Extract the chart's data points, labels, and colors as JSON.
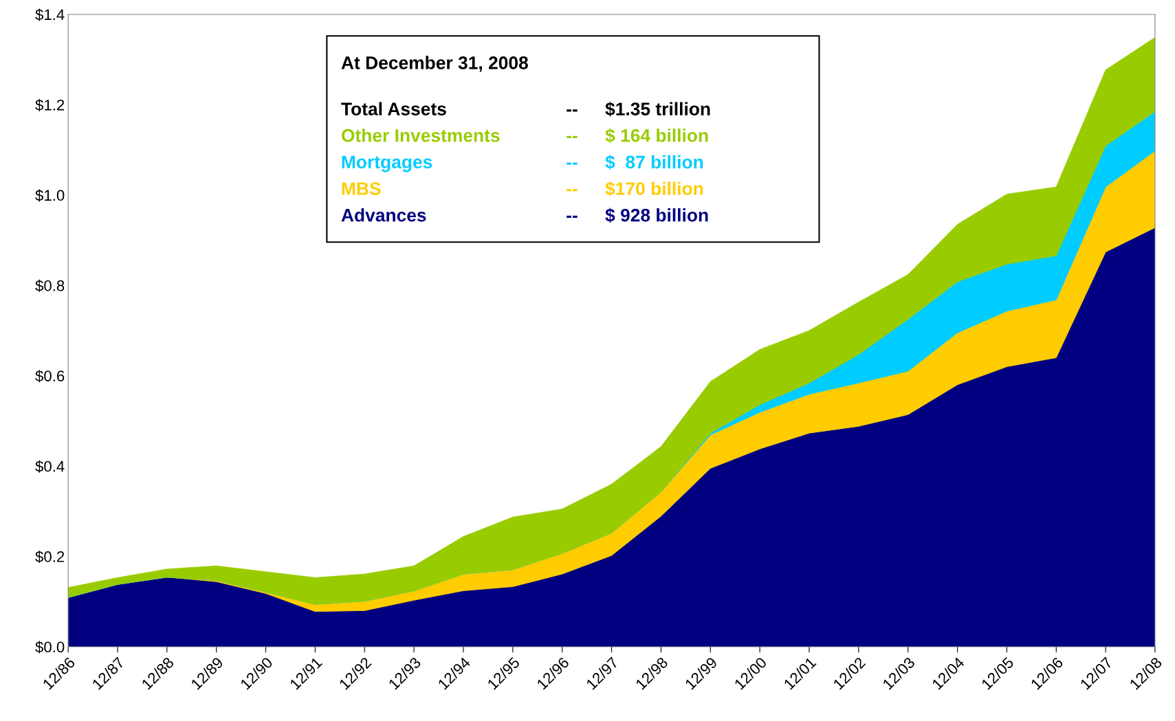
{
  "chart_data": {
    "type": "area",
    "stacked": true,
    "legend": "top",
    "grid": false,
    "categories": [
      "12/86",
      "12/87",
      "12/88",
      "12/89",
      "12/90",
      "12/91",
      "12/92",
      "12/93",
      "12/94",
      "12/95",
      "12/96",
      "12/97",
      "12/98",
      "12/99",
      "12/00",
      "12/01",
      "12/02",
      "12/03",
      "12/04",
      "12/05",
      "12/06",
      "12/07",
      "12/08"
    ],
    "series": [
      {
        "name": "Advances",
        "color": "#000080",
        "values": [
          0.109,
          0.138,
          0.154,
          0.144,
          0.118,
          0.078,
          0.08,
          0.103,
          0.124,
          0.133,
          0.161,
          0.202,
          0.289,
          0.395,
          0.438,
          0.473,
          0.488,
          0.514,
          0.58,
          0.62,
          0.64,
          0.874,
          0.928
        ]
      },
      {
        "name": "MBS",
        "color": "#ffcc00",
        "values": [
          0,
          0,
          0,
          0.003,
          0.003,
          0.016,
          0.021,
          0.021,
          0.037,
          0.038,
          0.046,
          0.05,
          0.054,
          0.074,
          0.081,
          0.086,
          0.096,
          0.096,
          0.115,
          0.123,
          0.128,
          0.144,
          0.17
        ]
      },
      {
        "name": "Mortgages",
        "color": "#00ccff",
        "values": [
          0,
          0,
          0,
          0,
          0,
          0,
          0,
          0,
          0,
          0,
          0,
          0,
          0,
          0.004,
          0.017,
          0.025,
          0.063,
          0.115,
          0.113,
          0.104,
          0.098,
          0.091,
          0.087
        ]
      },
      {
        "name": "Other Investments",
        "color": "#99cc00",
        "values": [
          0.022,
          0.015,
          0.018,
          0.032,
          0.045,
          0.059,
          0.06,
          0.055,
          0.083,
          0.116,
          0.098,
          0.108,
          0.1,
          0.114,
          0.122,
          0.116,
          0.116,
          0.099,
          0.127,
          0.155,
          0.152,
          0.168,
          0.164
        ]
      }
    ],
    "ylim": [
      0,
      1.4
    ],
    "yticks": [
      {
        "value": 0,
        "label": "$0.0"
      },
      {
        "value": 0.2,
        "label": "$0.2"
      },
      {
        "value": 0.4,
        "label": "$0.4"
      },
      {
        "value": 0.6,
        "label": "$0.6"
      },
      {
        "value": 0.8,
        "label": "$0.8"
      },
      {
        "value": 1.0,
        "label": "$1.0"
      },
      {
        "value": 1.2,
        "label": "$1.2"
      },
      {
        "value": 1.4,
        "label": "$1.4"
      }
    ],
    "annotations": [
      "At December 31, 2008",
      "Total Assets",
      "--",
      "$1.35 trillion",
      "--",
      "$ 164 billion",
      "--",
      "$  87 billion",
      "--",
      "$170 billion",
      "--",
      "$ 928 billion"
    ]
  }
}
